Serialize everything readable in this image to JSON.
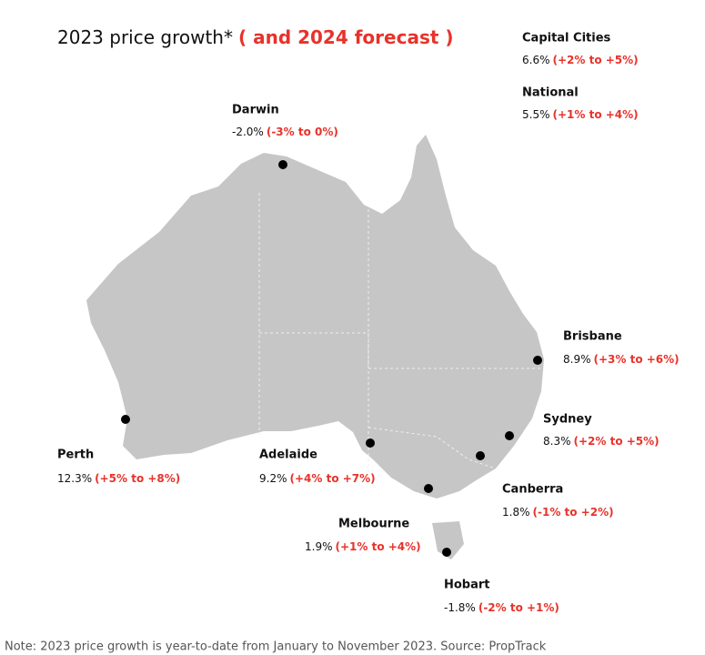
{
  "title": {
    "main": "2023 price growth*",
    "forecast": "( and 2024 forecast )"
  },
  "regions": [
    {
      "name": "Capital Cities",
      "growth": "6.6%",
      "forecast": "(+2% to +5%)"
    },
    {
      "name": "National",
      "growth": "5.5%",
      "forecast": "(+1% to +4%)"
    },
    {
      "name": "Darwin",
      "growth": "-2.0%",
      "forecast": "(-3% to 0%)"
    },
    {
      "name": "Brisbane",
      "growth": "8.9%",
      "forecast": "(+3% to +6%)"
    },
    {
      "name": "Sydney",
      "growth": "8.3%",
      "forecast": "(+2% to +5%)"
    },
    {
      "name": "Perth",
      "growth": "12.3%",
      "forecast": "(+5% to +8%)"
    },
    {
      "name": "Adelaide",
      "growth": "9.2%",
      "forecast": "(+4% to +7%)"
    },
    {
      "name": "Canberra",
      "growth": "1.8%",
      "forecast": "(-1% to +2%)"
    },
    {
      "name": "Melbourne",
      "growth": "1.9%",
      "forecast": "(+1% to +4%)"
    },
    {
      "name": "Hobart",
      "growth": "-1.8%",
      "forecast": "(-2% to +1%)"
    }
  ],
  "note": "Note: 2023 price growth is year-to-date from January to November 2023. Source: PropTrack"
}
